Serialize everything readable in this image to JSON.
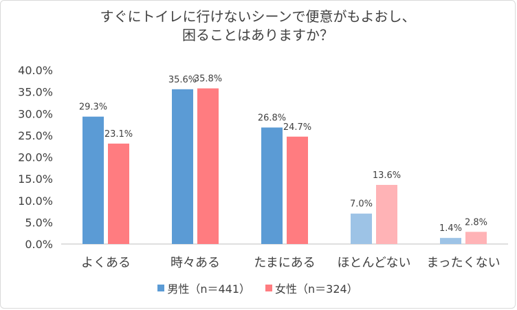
{
  "chart_data": {
    "type": "bar",
    "title": [
      "すぐにトイレに行けないシーンで便意がもよおし、",
      "困ることはありますか？"
    ],
    "categories": [
      "よくある",
      "時々ある",
      "たまにある",
      "ほとんどない",
      "まったくない"
    ],
    "series": [
      {
        "name": "男性（n＝441）",
        "values": [
          29.3,
          35.6,
          26.8,
          7.0,
          1.4
        ],
        "labels": [
          "29.3%",
          "35.6%",
          "26.8%",
          "7.0%",
          "1.4%"
        ],
        "colors": [
          "#5b9bd5",
          "#5b9bd5",
          "#5b9bd5",
          "#9dc3e6",
          "#9dc3e6"
        ]
      },
      {
        "name": "女性（n＝324）",
        "values": [
          23.1,
          35.8,
          24.7,
          13.6,
          2.8
        ],
        "labels": [
          "23.1%",
          "35.8%",
          "24.7%",
          "13.6%",
          "2.8%"
        ],
        "colors": [
          "#ff7c80",
          "#ff7c80",
          "#ff7c80",
          "#ffb3b6",
          "#ffb3b6"
        ]
      }
    ],
    "ylim": [
      0,
      40
    ],
    "yticks": [
      0,
      5,
      10,
      15,
      20,
      25,
      30,
      35,
      40
    ],
    "ytick_labels": [
      "0.0%",
      "5.0%",
      "10.0%",
      "15.0%",
      "20.0%",
      "25.0%",
      "30.0%",
      "35.0%",
      "40.0%"
    ],
    "grid": false,
    "legend": "bottom",
    "legend_colors": [
      "#5b9bd5",
      "#ff7c80"
    ]
  }
}
